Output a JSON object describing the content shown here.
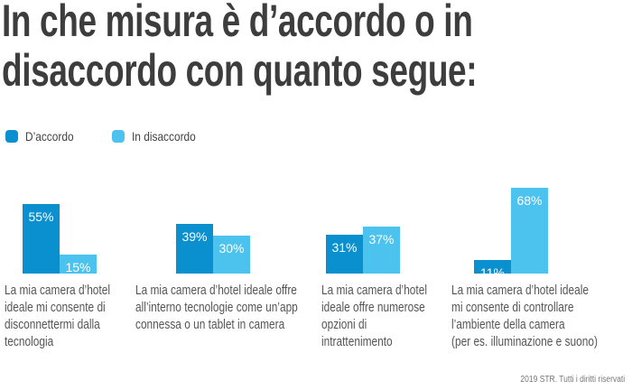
{
  "chart_data": {
    "type": "bar",
    "title": "In che misura è d’accordo o in\ndisaccordo con quanto segue:",
    "categories": [
      "La mia camera d’hotel\nideale mi consente di\ndisconnettermi dalla\ntecnologia",
      "La mia camera d’hotel ideale offre\nall’interno tecnologie come un’app\nconnessa o un tablet in camera",
      "La mia camera d’hotel\nideale offre numerose\nopzioni di\nintrattenimento",
      "La mia camera d’hotel ideale\nmi consente di controllare\nl’ambiente della camera\n(per es. illuminazione e suono)"
    ],
    "series": [
      {
        "name": "D’accordo",
        "color": "#0a8fcf",
        "values": [
          55,
          39,
          31,
          11
        ],
        "labels": [
          "55%",
          "39%",
          "31%",
          "11%"
        ]
      },
      {
        "name": "In disaccordo",
        "color": "#4cc3ee",
        "values": [
          15,
          30,
          37,
          68
        ],
        "labels": [
          "15%",
          "30%",
          "37%",
          "68%"
        ]
      }
    ],
    "legend": "top-left",
    "grid": false,
    "unit": "%"
  },
  "footer": {
    "credit": "2019 STR. Tutti i diritti riservati"
  }
}
